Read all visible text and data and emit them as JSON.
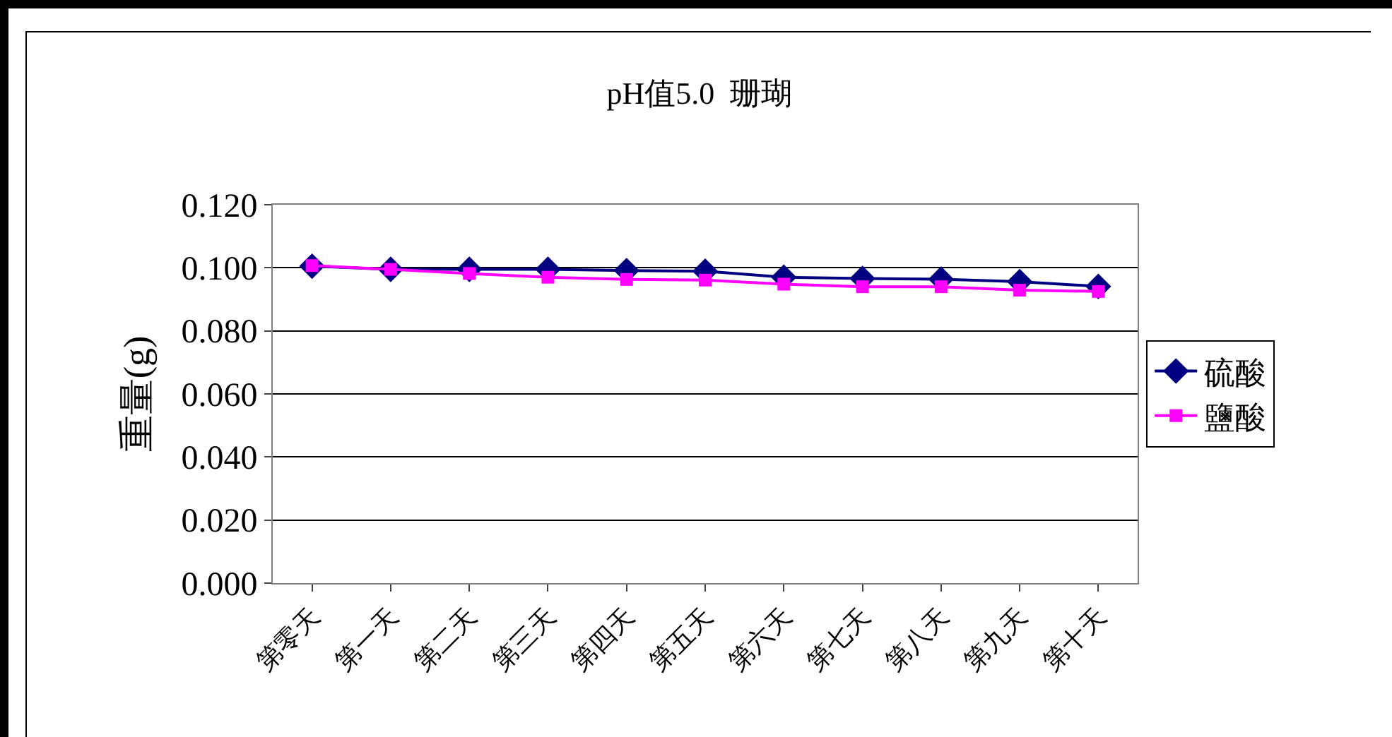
{
  "chart_data": {
    "type": "line",
    "title": "pH值5.0  珊瑚",
    "ylabel": "重量(g)",
    "categories": [
      "第零天",
      "第一天",
      "第二天",
      "第三天",
      "第四天",
      "第五天",
      "第六天",
      "第七天",
      "第八天",
      "第九天",
      "第十天"
    ],
    "series": [
      {
        "name": "硫酸",
        "color": "#000080",
        "marker": "diamond",
        "values": [
          0.1005,
          0.0995,
          0.0995,
          0.0995,
          0.0991,
          0.0989,
          0.097,
          0.0966,
          0.0964,
          0.0956,
          0.0941
        ]
      },
      {
        "name": "鹽酸",
        "color": "#ff00ff",
        "marker": "square",
        "values": [
          0.1007,
          0.0995,
          0.0982,
          0.097,
          0.0963,
          0.0961,
          0.0948,
          0.094,
          0.094,
          0.0929,
          0.0925
        ]
      }
    ],
    "ylim": [
      0,
      0.12
    ],
    "yticks": [
      {
        "value": 0,
        "label": "0.000"
      },
      {
        "value": 0.02,
        "label": "0.020"
      },
      {
        "value": 0.04,
        "label": "0.040"
      },
      {
        "value": 0.06,
        "label": "0.060"
      },
      {
        "value": 0.08,
        "label": "0.080"
      },
      {
        "value": 0.1,
        "label": "0.100"
      },
      {
        "value": 0.12,
        "label": "0.120"
      }
    ],
    "grid": "y",
    "legend": "right",
    "line_style": "solid"
  }
}
